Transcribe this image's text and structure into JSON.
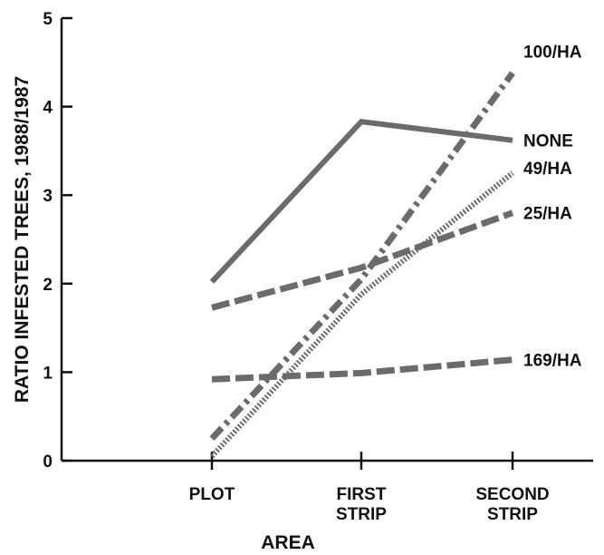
{
  "chart_data": {
    "type": "line",
    "title": "",
    "xlabel": "AREA",
    "ylabel": "RATIO INFESTED TREES, 1988/1987",
    "ylim": [
      0,
      5
    ],
    "yticks": [
      "0",
      "1",
      "2",
      "3",
      "4",
      "5"
    ],
    "categories": [
      {
        "id": "plot",
        "lines": [
          "PLOT"
        ]
      },
      {
        "id": "first-strip",
        "lines": [
          "FIRST",
          "STRIP"
        ]
      },
      {
        "id": "second-strip",
        "lines": [
          "SECOND",
          "STRIP"
        ]
      }
    ],
    "series": [
      {
        "id": "none",
        "name": "NONE",
        "style": "solid",
        "values": [
          2.02,
          3.83,
          3.62
        ]
      },
      {
        "id": "100-ha",
        "name": "100/HA",
        "style": "dashdot",
        "values": [
          0.25,
          2.05,
          4.38
        ]
      },
      {
        "id": "49-ha",
        "name": "49/HA",
        "style": "dotted",
        "values": [
          0.05,
          1.88,
          3.25
        ]
      },
      {
        "id": "25-ha",
        "name": "25/HA",
        "style": "dashed",
        "values": [
          1.73,
          2.18,
          2.8
        ]
      },
      {
        "id": "169-ha",
        "name": "169/HA",
        "style": "dashed",
        "values": [
          0.92,
          0.99,
          1.14
        ]
      }
    ],
    "grid": false,
    "legend": "inline labels at right end of each line",
    "colors": {
      "line": "#6b6b6b",
      "axis": "#111111",
      "text": "#111111"
    }
  }
}
